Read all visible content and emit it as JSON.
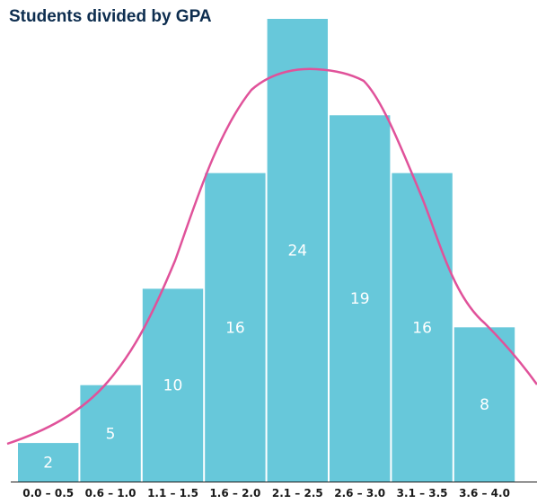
{
  "chart_data": {
    "type": "bar",
    "title": "Students divided by GPA",
    "xlabel": "",
    "ylabel": "",
    "categories": [
      "0.0 – 0.5",
      "0.6 – 1.0",
      "1.1 – 1.5",
      "1.6 – 2.0",
      "2.1 – 2.5",
      "2.6 – 3.0",
      "3.1 – 3.5",
      "3.6 – 4.0"
    ],
    "values": [
      2,
      5,
      10,
      16,
      24,
      19,
      16,
      8
    ],
    "ylim": [
      0,
      24
    ],
    "grid": false,
    "legend": "none",
    "overlay": "smoothed density curve",
    "colors": {
      "bar": "#67c8da",
      "curve": "#e0529a",
      "axis": "#1a1a1a",
      "bar_label": "#ffffff",
      "title": "#0d2d4f"
    }
  }
}
